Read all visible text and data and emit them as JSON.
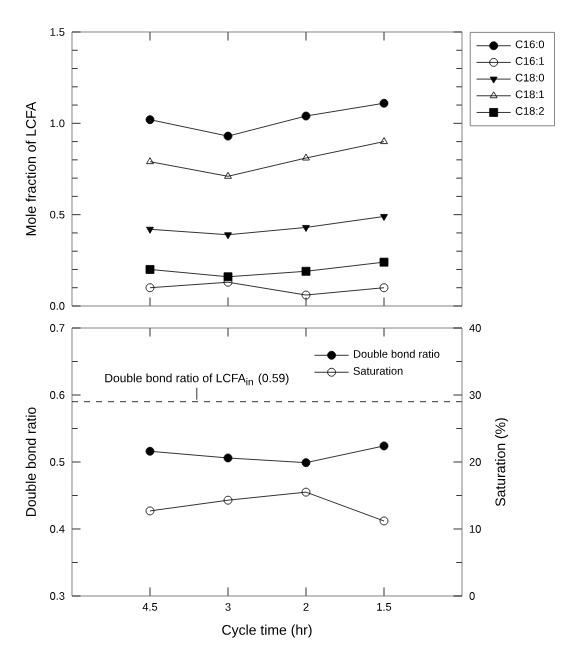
{
  "chart_data": [
    {
      "type": "line",
      "ylabel": "Mole fraction of LCFA",
      "categories": [
        "4.5",
        "3",
        "2",
        "1.5"
      ],
      "tick_labels": "y",
      "legend": "top right",
      "grid": false,
      "ylim": [
        0,
        1.5
      ],
      "yticks": [
        {
          "value": 0,
          "label": "0.0"
        },
        {
          "value": 0.5,
          "label": "0.5"
        },
        {
          "value": 1.0,
          "label": "1.0"
        },
        {
          "value": 1.5,
          "label": "1.5"
        }
      ],
      "series": [
        {
          "name": "C16:0",
          "color": "#000000",
          "marker": "circle",
          "values": [
            1.02,
            0.93,
            1.04,
            1.11
          ]
        },
        {
          "name": "C16:1",
          "color": "#000000",
          "marker": "circle-open",
          "values": [
            0.1,
            0.13,
            0.06,
            0.1
          ]
        },
        {
          "name": "C18:0",
          "color": "#000000",
          "marker": "triangle-down",
          "values": [
            0.42,
            0.39,
            0.43,
            0.49
          ]
        },
        {
          "name": "C18:1",
          "color": "#000000",
          "marker": "triangle-open",
          "values": [
            0.79,
            0.71,
            0.81,
            0.9
          ]
        },
        {
          "name": "C18:2",
          "color": "#000000",
          "marker": "square",
          "values": [
            0.2,
            0.16,
            0.19,
            0.24
          ]
        }
      ]
    },
    {
      "type": "line",
      "xlabel": "Cycle time (hr)",
      "ylabel": "Double bond ratio",
      "y2label": "Saturation (%)",
      "categories": [
        "4.5",
        "3",
        "2",
        "1.5"
      ],
      "legend": "top right",
      "grid": false,
      "ylim": [
        0.3,
        0.7
      ],
      "yticks": [
        0.3,
        0.4,
        0.5,
        0.6,
        0.7
      ],
      "y2lim": [
        0,
        40
      ],
      "y2ticks": [
        0,
        10,
        20,
        30,
        40
      ],
      "ref_lines": [
        {
          "axis": "y",
          "value": 0.59,
          "label": "Double bond ratio of LCFA$_{in}$ (0.59)",
          "line_style": "dashed",
          "color": "#000000"
        }
      ],
      "series": [
        {
          "name": "Double bond ratio",
          "color": "#000000",
          "marker": "circle",
          "values": [
            0.516,
            0.506,
            0.499,
            0.524
          ]
        },
        {
          "name": "Saturation",
          "color": "#000000",
          "marker": "circle-open",
          "axis": "y2",
          "values": [
            12.7,
            14.3,
            15.5,
            11.2
          ]
        }
      ]
    }
  ]
}
